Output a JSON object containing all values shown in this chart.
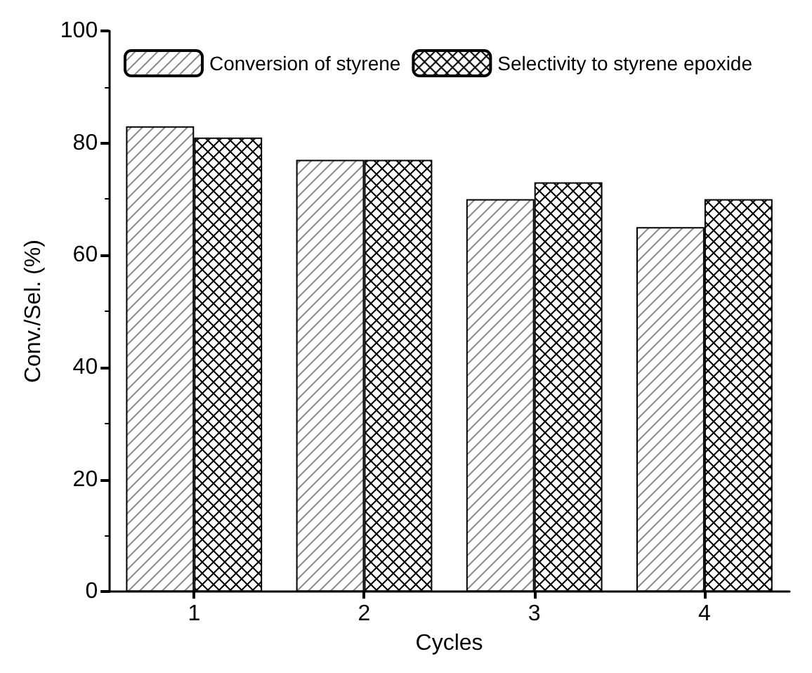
{
  "chart_data": {
    "type": "bar",
    "xlabel": "Cycles",
    "ylabel": "Conv./Sel. (%)",
    "categories": [
      "1",
      "2",
      "3",
      "4"
    ],
    "series": [
      {
        "name": "Conversion of styrene",
        "color": "#000000",
        "values": [
          83,
          77,
          70,
          65
        ]
      },
      {
        "name": "Selectivity to styrene epoxide",
        "color": "#000000",
        "values": [
          81,
          77,
          73,
          70
        ]
      }
    ],
    "ylim": [
      0,
      100
    ],
    "yticks": [
      0,
      20,
      40,
      60,
      80,
      100
    ],
    "grid": false,
    "legend": "top left"
  }
}
